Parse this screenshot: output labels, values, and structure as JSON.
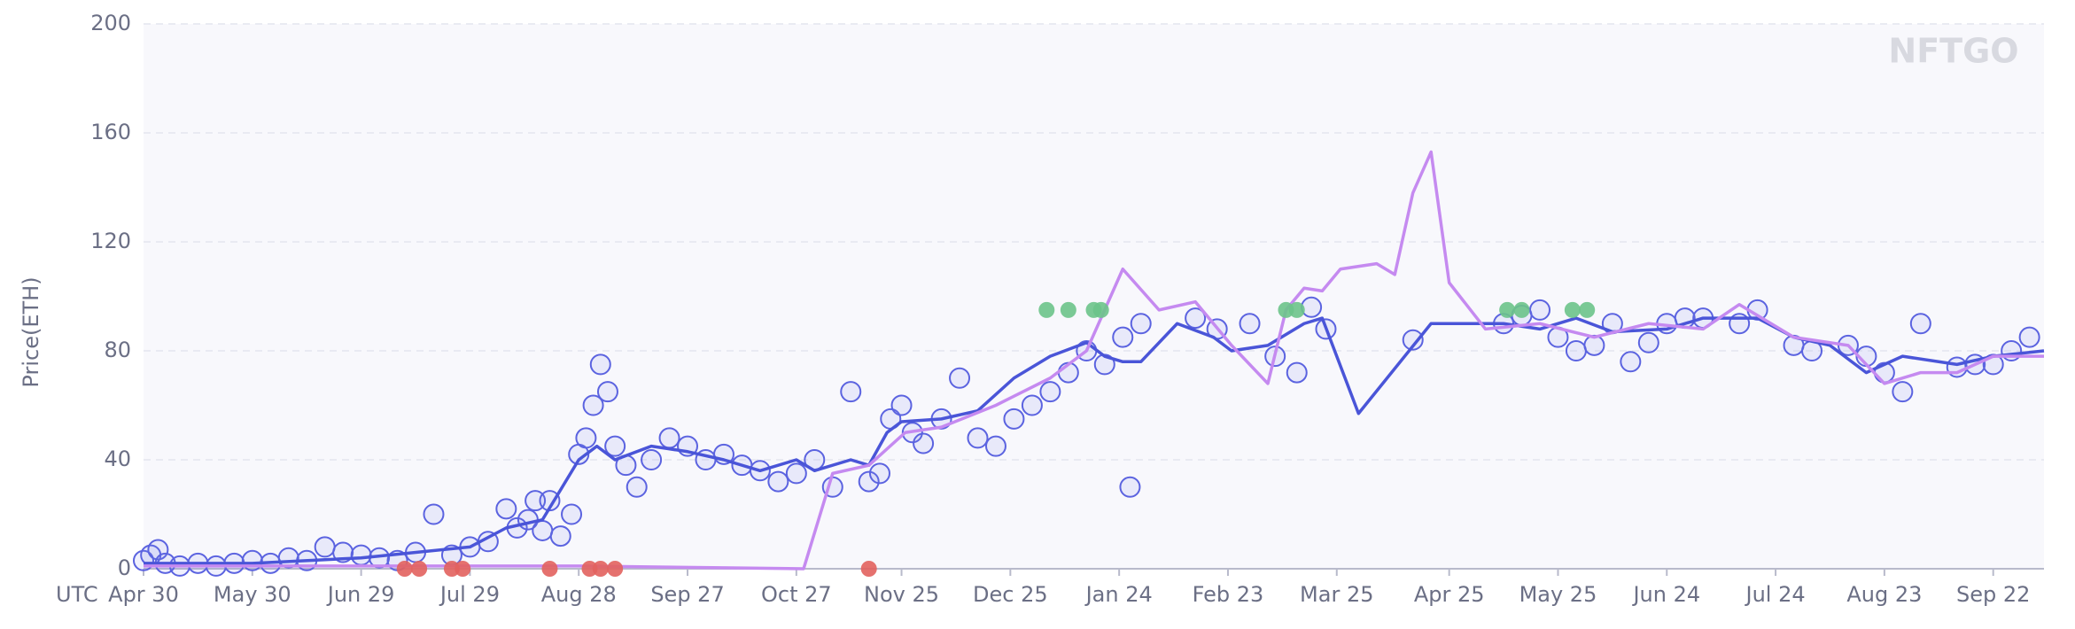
{
  "chart_data": {
    "type": "scatter",
    "y_label": "Price(ETH)",
    "x_annotation": "UTC",
    "watermark": "NFTGO",
    "grid": true,
    "xlim": [
      0,
      524
    ],
    "ylim": [
      0,
      200
    ],
    "yticks": [
      0,
      40,
      80,
      120,
      160,
      200
    ],
    "xticks": [
      {
        "value": 0,
        "label": "Apr 30"
      },
      {
        "value": 30,
        "label": "May 30"
      },
      {
        "value": 60,
        "label": "Jun 29"
      },
      {
        "value": 90,
        "label": "Jul 29"
      },
      {
        "value": 120,
        "label": "Aug 28"
      },
      {
        "value": 150,
        "label": "Sep 27"
      },
      {
        "value": 180,
        "label": "Oct 27"
      },
      {
        "value": 209,
        "label": "Nov 25"
      },
      {
        "value": 239,
        "label": "Dec 25"
      },
      {
        "value": 269,
        "label": "Jan 24"
      },
      {
        "value": 299,
        "label": "Feb 23"
      },
      {
        "value": 329,
        "label": "Mar 25"
      },
      {
        "value": 360,
        "label": "Apr 25"
      },
      {
        "value": 390,
        "label": "May 25"
      },
      {
        "value": 420,
        "label": "Jun 24"
      },
      {
        "value": 450,
        "label": "Jul 24"
      },
      {
        "value": 480,
        "label": "Aug 23"
      },
      {
        "value": 510,
        "label": "Sep 22"
      }
    ],
    "series": [
      {
        "type": "scatter",
        "color": "#5b63e0",
        "x": [
          0,
          2,
          4,
          6,
          10,
          15,
          20,
          25,
          30,
          35,
          40,
          45,
          50,
          55,
          60,
          65,
          70,
          75,
          80,
          85,
          90,
          95,
          100,
          103,
          106,
          108,
          110,
          112,
          115,
          118,
          120,
          122,
          124,
          126,
          128,
          130,
          133,
          136,
          140,
          145,
          150,
          155,
          160,
          165,
          170,
          175,
          180,
          185,
          190,
          195,
          200,
          203,
          206,
          209,
          212,
          215,
          220,
          225,
          230,
          235,
          240,
          245,
          250,
          255,
          260,
          265,
          270,
          275,
          272,
          290,
          296,
          305,
          312,
          318,
          322,
          326,
          350,
          375,
          380,
          385,
          390,
          395,
          400,
          405,
          410,
          415,
          420,
          425,
          430,
          440,
          445,
          455,
          460,
          470,
          475,
          480,
          485,
          490,
          500,
          505,
          510,
          515,
          520
        ],
        "values": [
          3,
          5,
          7,
          2,
          1,
          2,
          1,
          2,
          3,
          2,
          4,
          3,
          8,
          6,
          5,
          4,
          3,
          6,
          20,
          5,
          8,
          10,
          22,
          15,
          18,
          25,
          14,
          25,
          12,
          20,
          42,
          48,
          60,
          75,
          65,
          45,
          38,
          30,
          40,
          48,
          45,
          40,
          42,
          38,
          36,
          32,
          35,
          40,
          30,
          65,
          32,
          35,
          55,
          60,
          50,
          46,
          55,
          70,
          48,
          45,
          55,
          60,
          65,
          72,
          80,
          75,
          85,
          90,
          30,
          92,
          88,
          90,
          78,
          72,
          96,
          88,
          84,
          90,
          93,
          95,
          85,
          80,
          82,
          90,
          76,
          83,
          90,
          92,
          92,
          90,
          95,
          82,
          80,
          82,
          78,
          72,
          65,
          90,
          74,
          75,
          75,
          80,
          85
        ]
      },
      {
        "type": "line",
        "color": "#4a55d8",
        "x": [
          0,
          30,
          60,
          90,
          100,
          110,
          120,
          125,
          130,
          140,
          150,
          160,
          170,
          180,
          185,
          195,
          200,
          205,
          209,
          220,
          230,
          240,
          250,
          260,
          265,
          270,
          275,
          285,
          295,
          300,
          310,
          320,
          325,
          335,
          355,
          375,
          385,
          395,
          405,
          420,
          430,
          445,
          455,
          465,
          475,
          485,
          500,
          510,
          524
        ],
        "values": [
          2,
          2,
          4,
          8,
          15,
          18,
          40,
          45,
          40,
          45,
          43,
          40,
          36,
          40,
          36,
          40,
          38,
          50,
          54,
          55,
          58,
          70,
          78,
          83,
          78,
          76,
          76,
          90,
          85,
          80,
          82,
          90,
          92,
          57,
          90,
          90,
          88,
          92,
          87,
          88,
          92,
          92,
          85,
          82,
          72,
          78,
          75,
          78,
          80
        ]
      },
      {
        "type": "line",
        "color": "#c58af0",
        "x": [
          0,
          60,
          120,
          182,
          190,
          200,
          210,
          220,
          235,
          250,
          260,
          270,
          280,
          290,
          300,
          310,
          315,
          320,
          325,
          330,
          340,
          345,
          350,
          355,
          360,
          370,
          385,
          400,
          415,
          430,
          440,
          455,
          470,
          480,
          490,
          500,
          510,
          524
        ],
        "values": [
          1,
          1,
          1,
          0,
          35,
          38,
          50,
          52,
          60,
          70,
          80,
          110,
          95,
          98,
          82,
          68,
          95,
          103,
          102,
          110,
          112,
          108,
          138,
          153,
          105,
          88,
          90,
          85,
          90,
          88,
          97,
          85,
          82,
          68,
          72,
          72,
          78,
          78
        ]
      },
      {
        "type": "scatter",
        "color": "#e2625e",
        "filled": true,
        "x": [
          72,
          76,
          85,
          88,
          112,
          123,
          126,
          130,
          200
        ],
        "values": [
          0,
          0,
          0,
          0,
          0,
          0,
          0,
          0,
          0
        ]
      },
      {
        "type": "scatter",
        "color": "#6cc38a",
        "filled": true,
        "x": [
          249,
          255,
          262,
          264,
          315,
          318,
          376,
          380,
          394,
          398
        ],
        "values": [
          95,
          95,
          95,
          95,
          95,
          95,
          95,
          95,
          95,
          95
        ]
      }
    ]
  }
}
